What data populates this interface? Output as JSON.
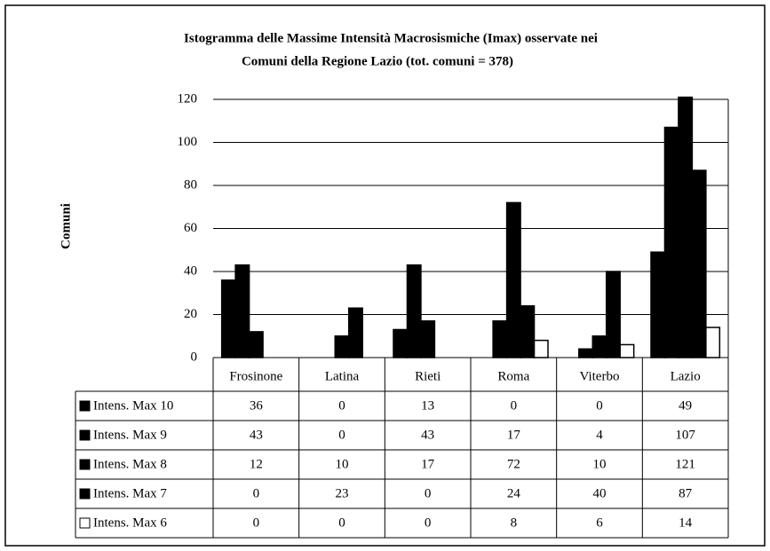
{
  "chart_data": {
    "type": "bar",
    "title": [
      "Istogramma delle Massime Intensità Macrosismiche (Imax) osservate nei",
      "Comuni della Regione Lazio (tot. comuni = 378)"
    ],
    "y_label": "Comuni",
    "categories": [
      "Frosinone",
      "Latina",
      "Rieti",
      "Roma",
      "Viterbo",
      "Lazio"
    ],
    "series": [
      {
        "name": "Intens. Max 10",
        "color": "#000000",
        "values": [
          36,
          0,
          13,
          0,
          0,
          49
        ]
      },
      {
        "name": "Intens. Max 9",
        "color": "#000000",
        "values": [
          43,
          0,
          43,
          17,
          4,
          107
        ]
      },
      {
        "name": "Intens. Max 8",
        "color": "#000000",
        "values": [
          12,
          10,
          17,
          72,
          10,
          121
        ]
      },
      {
        "name": "Intens. Max 7",
        "color": "#000000",
        "values": [
          0,
          23,
          0,
          24,
          40,
          87
        ]
      },
      {
        "name": "Intens. Max 6",
        "color": "#ffffff",
        "values": [
          0,
          0,
          0,
          8,
          6,
          14
        ]
      }
    ],
    "ylim": [
      0,
      120
    ],
    "yticks": [
      0,
      20,
      40,
      60,
      80,
      100,
      120
    ],
    "grid": true
  }
}
